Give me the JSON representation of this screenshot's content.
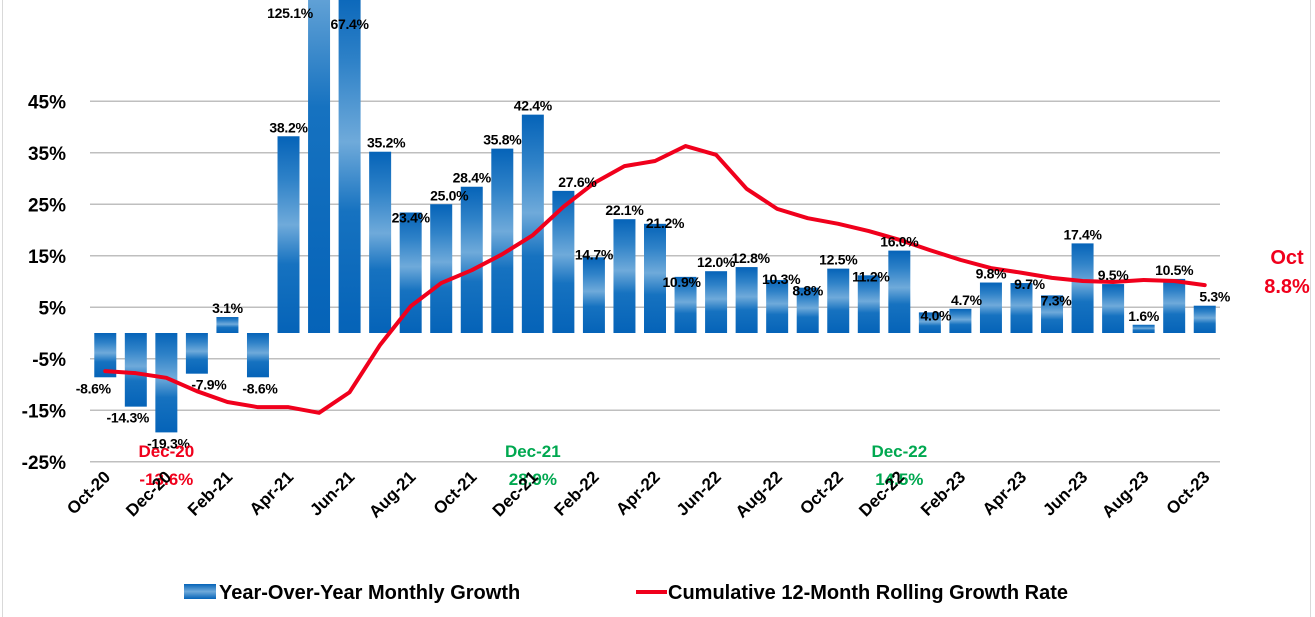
{
  "chart_data": {
    "type": "bar",
    "title": "",
    "xlabel": "",
    "ylabel": "",
    "ylim": [
      -25,
      65
    ],
    "yticks": [
      "45%",
      "35%",
      "25%",
      "15%",
      "5%",
      "-5%",
      "-15%",
      "-25%"
    ],
    "ytick_values": [
      45,
      35,
      25,
      15,
      5,
      -5,
      -15,
      -25
    ],
    "grid": true,
    "legend_position": "bottom",
    "categories": [
      "Oct-20",
      "Nov-20",
      "Dec-20",
      "Jan-21",
      "Feb-21",
      "Mar-21",
      "Apr-21",
      "May-21",
      "Jun-21",
      "Jul-21",
      "Aug-21",
      "Sep-21",
      "Oct-21",
      "Nov-21",
      "Dec-21",
      "Jan-22",
      "Feb-22",
      "Mar-22",
      "Apr-22",
      "May-22",
      "Jun-22",
      "Jul-22",
      "Aug-22",
      "Sep-22",
      "Oct-22",
      "Nov-22",
      "Dec-22",
      "Jan-23",
      "Feb-23",
      "Mar-23",
      "Apr-23",
      "May-23",
      "Jun-23",
      "Jul-23",
      "Aug-23",
      "Sep-23",
      "Oct-23"
    ],
    "x_tick_labels": [
      "Oct-20",
      "Dec-20",
      "Feb-21",
      "Apr-21",
      "Jun-21",
      "Aug-21",
      "Oct-21",
      "Dec-21",
      "Feb-22",
      "Apr-22",
      "Jun-22",
      "Aug-22",
      "Oct-22",
      "Dec-22",
      "Feb-23",
      "Apr-23",
      "Jun-23",
      "Aug-23",
      "Oct-23"
    ],
    "series": [
      {
        "name": "Year-Over-Year Monthly Growth",
        "type": "bar",
        "color": "#0563B8",
        "color_light": "#6FAADA",
        "values": [
          -8.6,
          -14.3,
          -19.3,
          -7.9,
          3.1,
          -8.6,
          38.2,
          125.1,
          67.4,
          35.2,
          23.4,
          25.0,
          28.4,
          35.8,
          42.4,
          27.6,
          14.7,
          22.1,
          21.2,
          10.9,
          12.0,
          12.8,
          10.3,
          8.8,
          12.5,
          11.2,
          16.0,
          4.0,
          4.7,
          9.8,
          9.7,
          7.3,
          17.4,
          9.5,
          1.6,
          10.5,
          5.3
        ],
        "labels": [
          "-8.6%",
          "-14.3%",
          "-19.3%",
          "-7.9%",
          "3.1%",
          "-8.6%",
          "38.2%",
          "125.1%",
          "67.4%",
          "35.2%",
          "23.4%",
          "25.0%",
          "28.4%",
          "35.8%",
          "42.4%",
          "27.6%",
          "14.7%",
          "22.1%",
          "21.2%",
          "10.9%",
          "12.0%",
          "12.8%",
          "10.3%",
          "8.8%",
          "12.5%",
          "11.2%",
          "16.0%",
          "4.0%",
          "4.7%",
          "9.8%",
          "9.7%",
          "7.3%",
          "17.4%",
          "9.5%",
          "1.6%",
          "10.5%",
          "5.3%"
        ]
      },
      {
        "name": "Cumulative 12-Month Rolling Growth Rate",
        "type": "line",
        "color": "#F0001C",
        "values": [
          -7.4,
          -7.8,
          -8.7,
          -11.3,
          -13.4,
          -14.4,
          -14.4,
          -15.5,
          -11.5,
          -2.3,
          5.2,
          9.7,
          12.2,
          15.3,
          19.0,
          24.5,
          29.1,
          32.4,
          33.4,
          36.3,
          34.6,
          28.0,
          24.1,
          22.3,
          21.2,
          19.8,
          18.1,
          16.1,
          14.2,
          12.6,
          11.7,
          10.7,
          10.1,
          9.9,
          10.3,
          10.1,
          9.3
        ]
      }
    ],
    "annotations": [
      {
        "id": "dec20",
        "month": "Dec-20",
        "line1": "Dec-20",
        "line2": "-13.6%",
        "color": "#F0001C"
      },
      {
        "id": "dec21",
        "month": "Dec-21",
        "line1": "Dec-21",
        "line2": "28.9%",
        "color": "#00A850"
      },
      {
        "id": "dec22",
        "month": "Dec-22",
        "line1": "Dec-22",
        "line2": "14.5%",
        "color": "#00A850"
      },
      {
        "id": "oct23",
        "month": "Oct-23",
        "line1": "Oct",
        "line2": "8.8%",
        "color": "#F0001C"
      }
    ]
  },
  "legend": {
    "bar_label": "Year-Over-Year Monthly Growth",
    "line_label": "Cumulative 12-Month Rolling Growth Rate"
  }
}
